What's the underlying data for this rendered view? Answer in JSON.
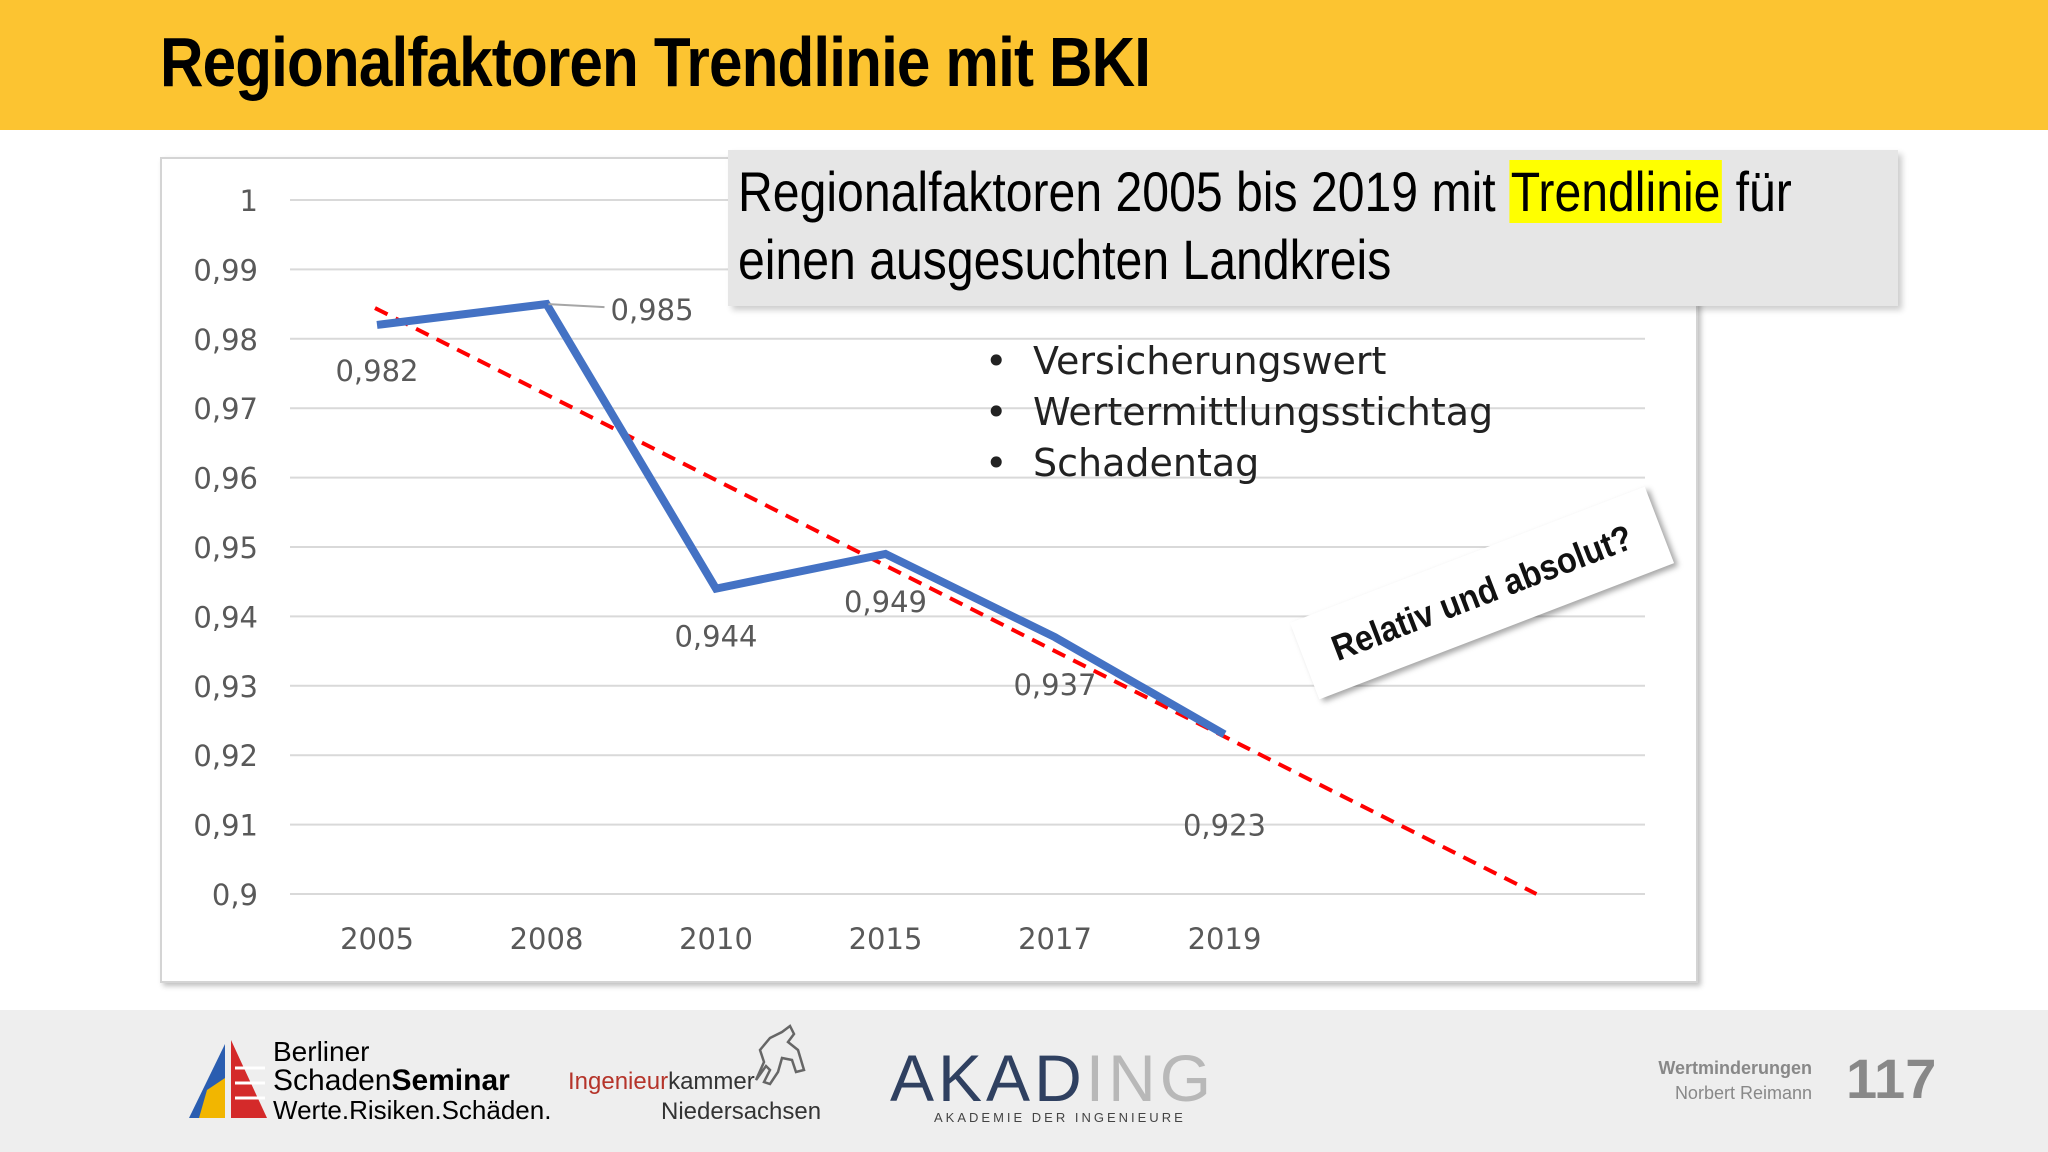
{
  "slide": {
    "title": "Regionalfaktoren Trendlinie mit BKI",
    "page_number": "117"
  },
  "callout": {
    "text_before": "Regionalfaktoren 2005 bis 2019 mit ",
    "highlight": "Trendlinie",
    "text_after_line1": " für",
    "line2": "einen ausgesuchten Landkreis"
  },
  "bullets": [
    "Versicherungswert",
    "Wertermittlungsstichtag",
    "Schadentag"
  ],
  "annotation": "Relativ und absolut?",
  "footer": {
    "logo1": {
      "line1": "Berliner",
      "line2a": "Schaden",
      "line2b": "Seminar",
      "line3": "Werte.Risiken.Schäden."
    },
    "logo2": {
      "part1": "Ingenieur",
      "part2": "kammer",
      "line2": "Niedersachsen"
    },
    "logo3": {
      "dark": "AKAD",
      "light": "ING",
      "sub": "AKADEMIE DER INGENIEURE"
    },
    "right_line1": "Wertminderungen",
    "right_line2": "Norbert Reimann"
  },
  "chart_data": {
    "type": "line",
    "categories": [
      "2005",
      "2008",
      "2010",
      "2015",
      "2017",
      "2019"
    ],
    "series": [
      {
        "values": [
          0.982,
          0.985,
          0.944,
          0.949,
          0.937,
          0.923
        ],
        "color": "#4472c4"
      }
    ],
    "data_labels": [
      "0,982",
      "0,985",
      "0,944",
      "0,949",
      "0,937",
      "0,923"
    ],
    "trendline": {
      "type": "linear",
      "color": "#ff0000",
      "style": "dashed",
      "start": 0.984,
      "end_at_ymin": 0.9
    },
    "ylim": [
      0.9,
      1.0
    ],
    "yticks": [
      0.9,
      0.91,
      0.92,
      0.93,
      0.94,
      0.95,
      0.96,
      0.97,
      0.98,
      0.99,
      1.0
    ],
    "ytick_labels": [
      "0,9",
      "0,91",
      "0,92",
      "0,93",
      "0,94",
      "0,95",
      "0,96",
      "0,97",
      "0,98",
      "0,99",
      "1"
    ],
    "grid": true,
    "legend": "none"
  }
}
